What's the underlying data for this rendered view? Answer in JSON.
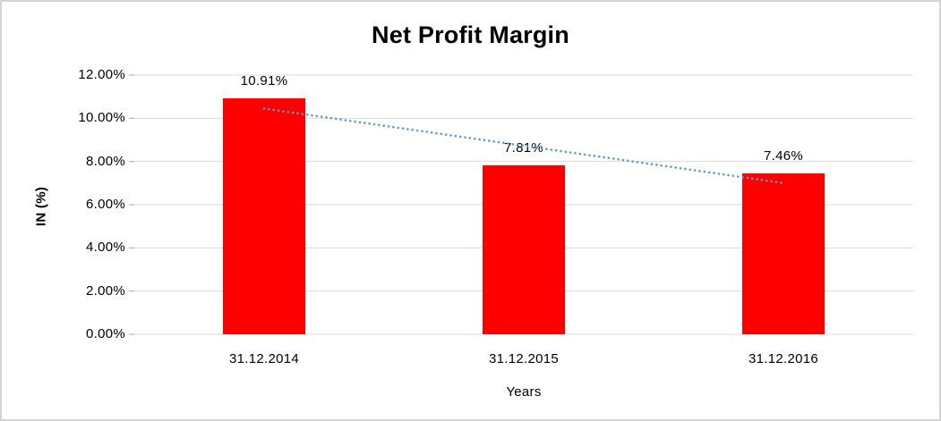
{
  "chart_data": {
    "type": "bar",
    "title": "Net Profit Margin",
    "xlabel": "Years",
    "ylabel": "IN (%)",
    "categories": [
      "31.12.2014",
      "31.12.2015",
      "31.12.2016"
    ],
    "values": [
      10.91,
      7.81,
      7.46
    ],
    "data_labels": [
      "10.91%",
      "7.81%",
      "7.46%"
    ],
    "y_ticks": [
      "0.00%",
      "2.00%",
      "4.00%",
      "6.00%",
      "8.00%",
      "10.00%",
      "12.00%"
    ],
    "ylim": [
      0,
      12
    ],
    "y_tick_step": 2,
    "grid": true,
    "legend_position": "none",
    "trendline": {
      "type": "linear",
      "style": "dotted",
      "fit_values": [
        10.4517,
        8.7267,
        7.0017
      ]
    },
    "colors": {
      "bar": "#ff0000",
      "trendline": "#5b9bd5",
      "gridline": "#d9d9d9",
      "axis_tick": "#a6a6a6",
      "text": "#000000",
      "chart_border": "#d3d3d3",
      "background": "#ffffff"
    }
  }
}
